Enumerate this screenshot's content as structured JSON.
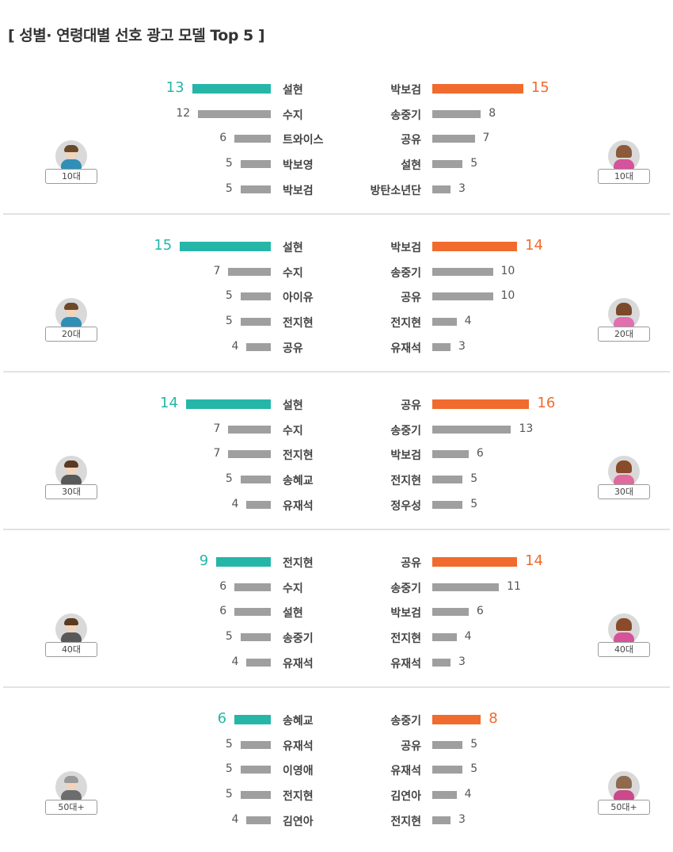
{
  "title": "[ 성별· 연령대별 선호 광고 모델 Top 5 ]",
  "colors": {
    "male_top": "#26b6a8",
    "female_top": "#f06b2d",
    "other": "#9f9f9f"
  },
  "chart_data": [
    {
      "type": "bar",
      "age_group": "10대",
      "male": {
        "categories": [
          "설현",
          "수지",
          "트와이스",
          "박보영",
          "박보검"
        ],
        "values": [
          13,
          12,
          6,
          5,
          5
        ]
      },
      "female": {
        "categories": [
          "박보검",
          "송중기",
          "공유",
          "설현",
          "방탄소년단"
        ],
        "values": [
          15,
          8,
          7,
          5,
          3
        ]
      }
    },
    {
      "type": "bar",
      "age_group": "20대",
      "male": {
        "categories": [
          "설현",
          "수지",
          "아이유",
          "전지현",
          "공유"
        ],
        "values": [
          15,
          7,
          5,
          5,
          4
        ]
      },
      "female": {
        "categories": [
          "박보검",
          "송중기",
          "공유",
          "전지현",
          "유재석"
        ],
        "values": [
          14,
          10,
          10,
          4,
          3
        ]
      }
    },
    {
      "type": "bar",
      "age_group": "30대",
      "male": {
        "categories": [
          "설현",
          "수지",
          "전지현",
          "송혜교",
          "유재석"
        ],
        "values": [
          14,
          7,
          7,
          5,
          4
        ]
      },
      "female": {
        "categories": [
          "공유",
          "송중기",
          "박보검",
          "전지현",
          "정우성"
        ],
        "values": [
          16,
          13,
          6,
          5,
          5
        ]
      }
    },
    {
      "type": "bar",
      "age_group": "40대",
      "male": {
        "categories": [
          "전지현",
          "수지",
          "설현",
          "송중기",
          "유재석"
        ],
        "values": [
          9,
          6,
          6,
          5,
          4
        ]
      },
      "female": {
        "categories": [
          "공유",
          "송중기",
          "박보검",
          "전지현",
          "유재석"
        ],
        "values": [
          14,
          11,
          6,
          4,
          3
        ]
      }
    },
    {
      "type": "bar",
      "age_group": "50대+",
      "male": {
        "categories": [
          "송혜교",
          "유재석",
          "이영애",
          "전지현",
          "김연아"
        ],
        "values": [
          6,
          5,
          5,
          5,
          4
        ]
      },
      "female": {
        "categories": [
          "송중기",
          "공유",
          "유재석",
          "김연아",
          "전지현"
        ],
        "values": [
          8,
          5,
          5,
          4,
          3
        ]
      }
    }
  ]
}
